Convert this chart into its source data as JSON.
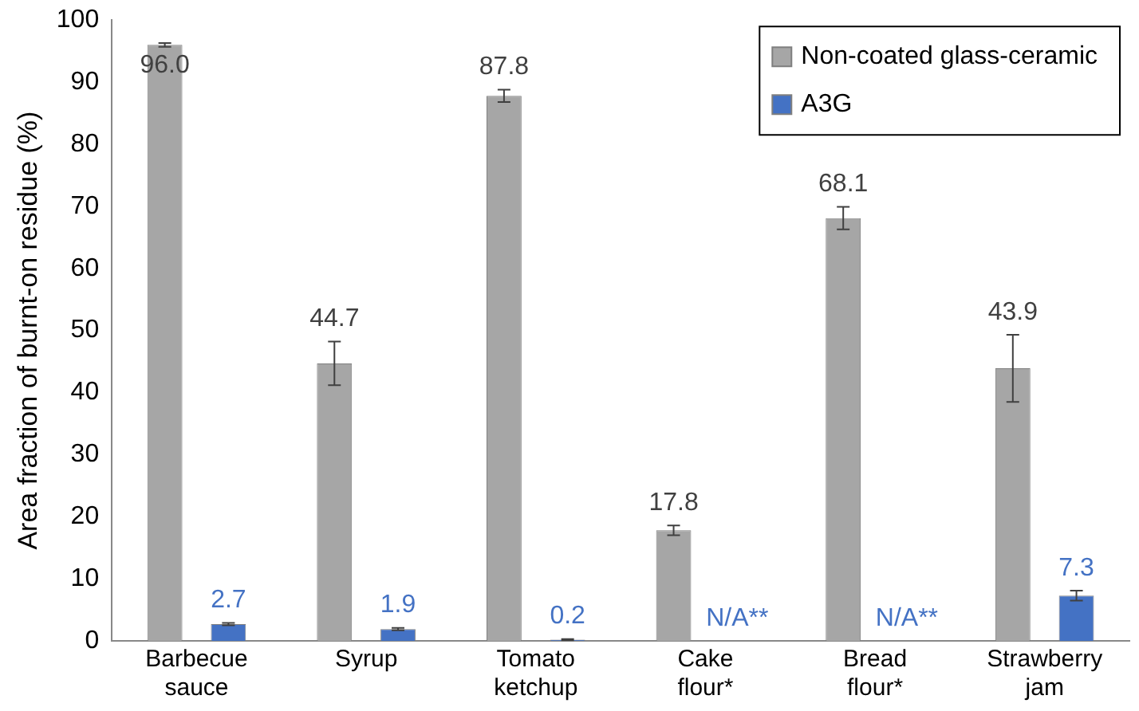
{
  "chart_data": {
    "type": "bar",
    "ylabel": "Area fraction of burnt-on residue (%)",
    "categories": [
      "Barbecue sauce",
      "Syrup",
      "Tomato ketchup",
      "Cake flour*",
      "Bread flour*",
      "Strawberry jam"
    ],
    "series": [
      {
        "name": "Non-coated glass-ceramic",
        "color": "#a6a6a6",
        "values": [
          96.0,
          44.7,
          87.8,
          17.8,
          68.1,
          43.9
        ],
        "errors": [
          0.3,
          3.5,
          1.0,
          0.8,
          1.8,
          5.4
        ],
        "value_labels": [
          "96.0",
          "44.7",
          "87.8",
          "17.8",
          "68.1",
          "43.9"
        ]
      },
      {
        "name": "A3G",
        "color": "#4472c4",
        "values": [
          2.7,
          1.9,
          0.2,
          null,
          null,
          7.3
        ],
        "errors": [
          0.2,
          0.2,
          0.1,
          null,
          null,
          0.8
        ],
        "value_labels": [
          "2.7",
          "1.9",
          "0.2",
          "N/A**",
          "N/A**",
          "7.3"
        ]
      }
    ],
    "ylim": [
      0,
      100
    ],
    "yticks": [
      0,
      10,
      20,
      30,
      40,
      50,
      60,
      70,
      80,
      90,
      100
    ],
    "grid": false,
    "legend": "top right"
  }
}
